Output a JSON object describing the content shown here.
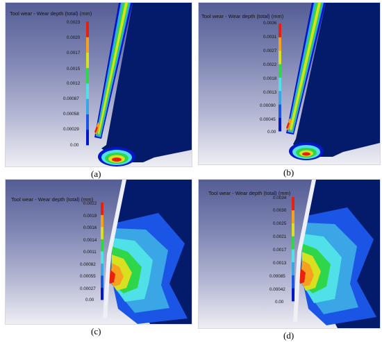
{
  "colors": {
    "metal": "#041a6b",
    "bands": [
      "#0018c8",
      "#1a55e6",
      "#3aa6e6",
      "#4fe0e8",
      "#30d64a",
      "#d9e020",
      "#f7a020",
      "#e8200c"
    ]
  },
  "panels": [
    {
      "id": "a",
      "title": "Tool wear - Wear depth (total) (mm)",
      "legend": [
        "0.0023",
        "0.0020",
        "0.0017",
        "0.0015",
        "0.0012",
        "0.00087",
        "0.00058",
        "0.00029",
        "0.00"
      ],
      "caption": "(a)"
    },
    {
      "id": "b",
      "title": "Tool wear - Wear depth (total) (mm)",
      "legend": [
        "0.0036",
        "0.0031",
        "0.0027",
        "0.0022",
        "0.0018",
        "0.0013",
        "0.00090",
        "0.00045",
        "0.00"
      ],
      "caption": "(b)"
    },
    {
      "id": "c",
      "title": "Tool wear - Wear depth (total) (mm)",
      "legend": [
        "0.0022",
        "0.0019",
        "0.0016",
        "0.0014",
        "0.0011",
        "0.00082",
        "0.00055",
        "0.00027",
        "0.00"
      ],
      "caption": "(c)"
    },
    {
      "id": "d",
      "title": "Tool wear - Wear depth (total) (mm)",
      "legend": [
        "0.0034",
        "0.0030",
        "0.0025",
        "0.0021",
        "0.0017",
        "0.0013",
        "0.00085",
        "0.00042",
        "0.00"
      ],
      "caption": "(d)"
    }
  ]
}
